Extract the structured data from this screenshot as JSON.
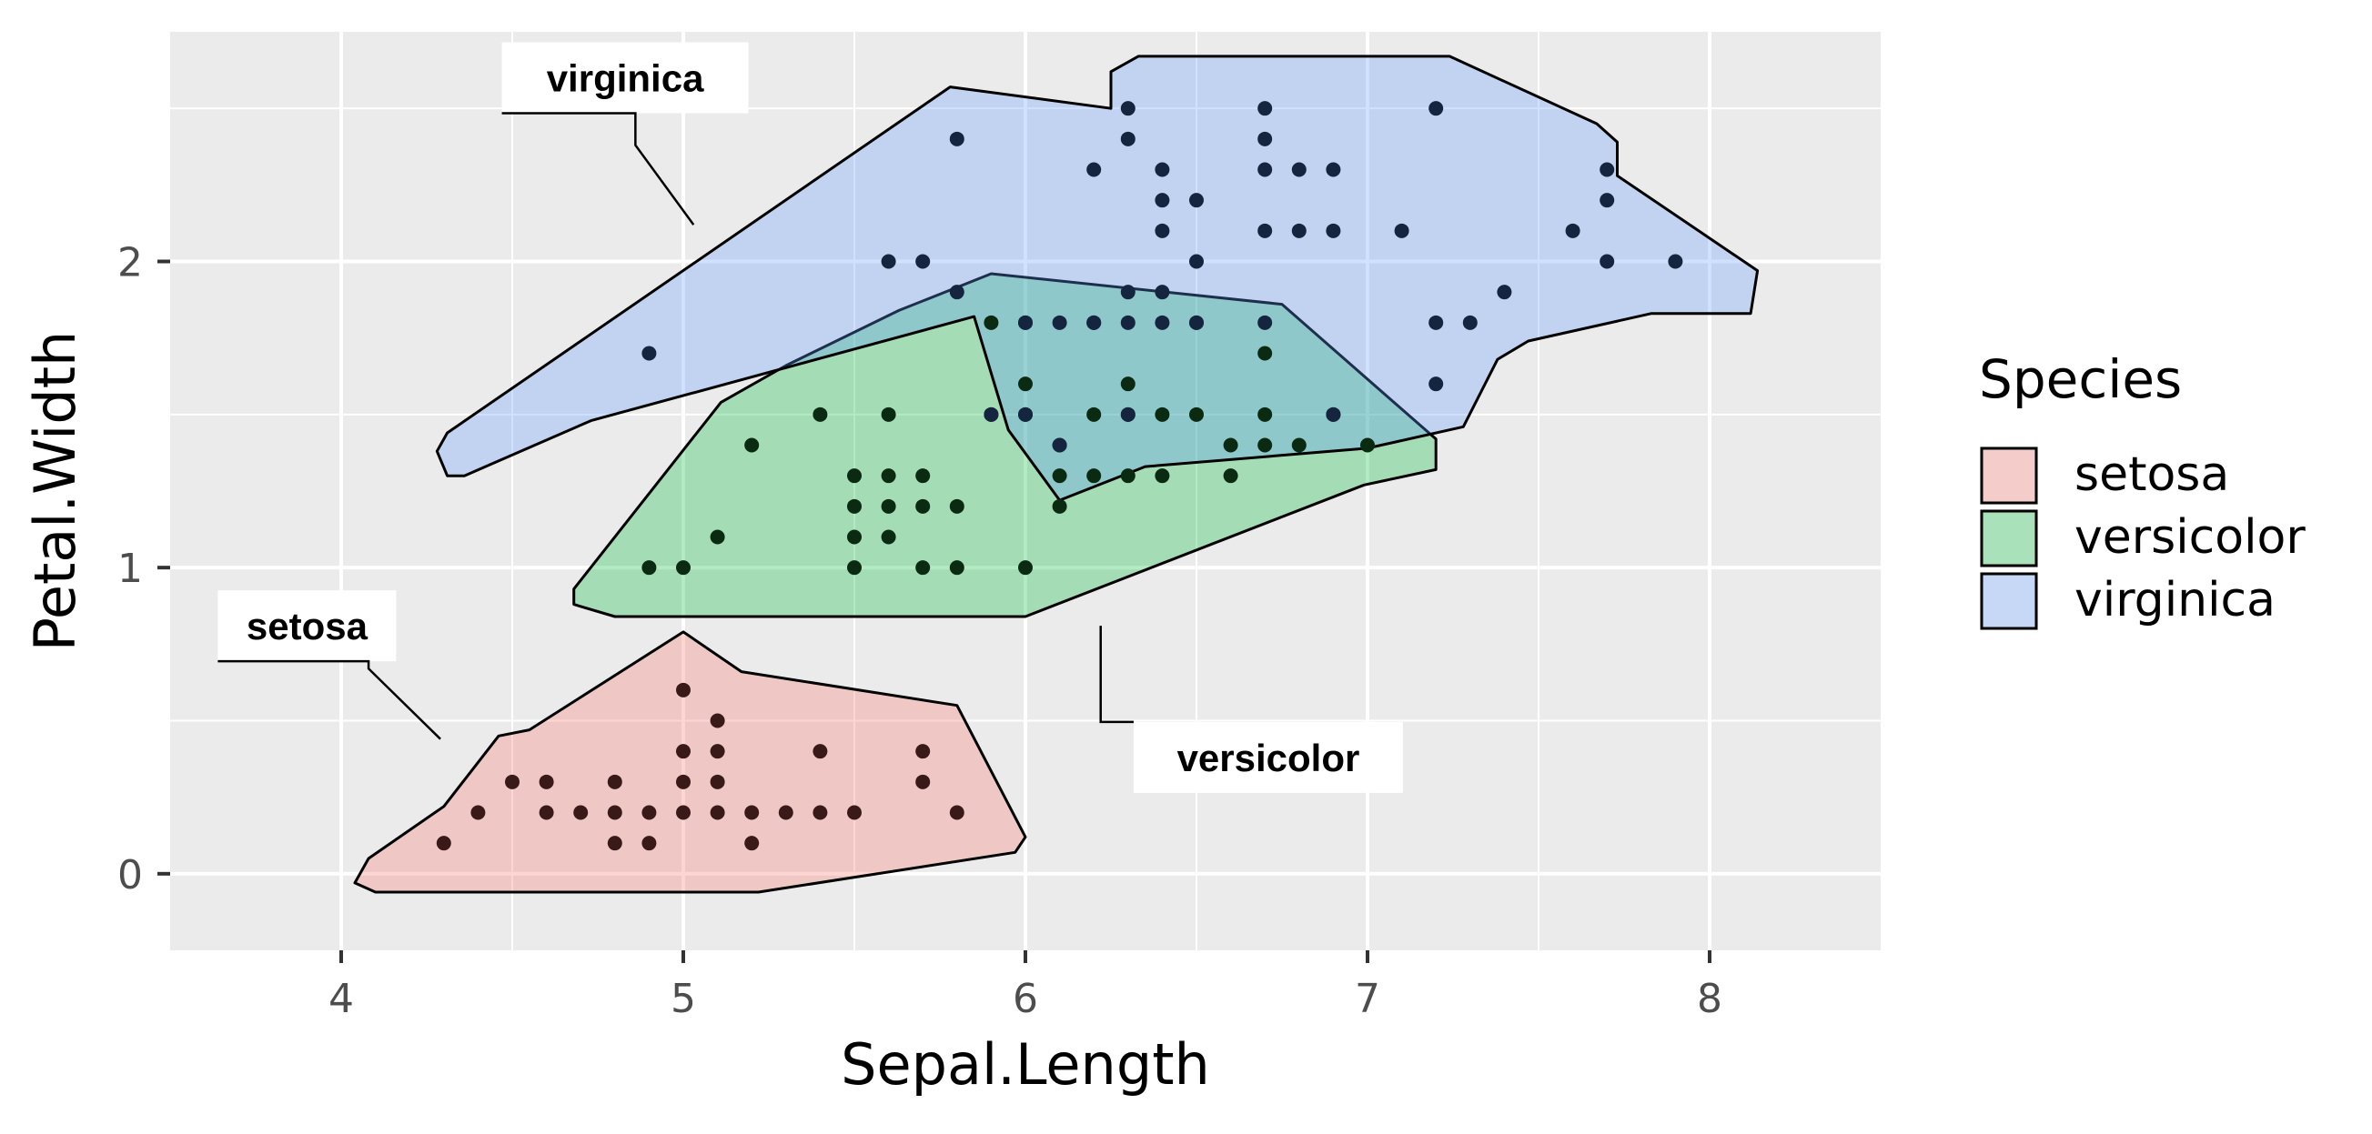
{
  "chart_data": {
    "type": "scatter",
    "xlabel": "Sepal.Length",
    "ylabel": "Petal.Width",
    "xlim": [
      3.5,
      8.5
    ],
    "ylim": [
      -0.25,
      2.75
    ],
    "x_ticks": [
      "4",
      "5",
      "6",
      "7",
      "8"
    ],
    "y_ticks": [
      "0",
      "1",
      "2"
    ],
    "grid": true,
    "legend": {
      "title": "Species",
      "position": "right",
      "entries": [
        "setosa",
        "versicolor",
        "virginica"
      ]
    },
    "series": [
      {
        "name": "setosa",
        "fill_color": "#F8766D",
        "point_color": "#3a1a18",
        "label": "setosa",
        "points": [
          [
            4.3,
            0.1
          ],
          [
            4.4,
            0.2
          ],
          [
            4.5,
            0.3
          ],
          [
            4.6,
            0.2
          ],
          [
            4.6,
            0.3
          ],
          [
            4.7,
            0.2
          ],
          [
            4.8,
            0.1
          ],
          [
            4.8,
            0.2
          ],
          [
            4.8,
            0.3
          ],
          [
            4.9,
            0.1
          ],
          [
            4.9,
            0.2
          ],
          [
            5.0,
            0.2
          ],
          [
            5.0,
            0.3
          ],
          [
            5.0,
            0.4
          ],
          [
            5.0,
            0.6
          ],
          [
            5.1,
            0.2
          ],
          [
            5.1,
            0.3
          ],
          [
            5.1,
            0.4
          ],
          [
            5.1,
            0.5
          ],
          [
            5.2,
            0.1
          ],
          [
            5.2,
            0.2
          ],
          [
            5.3,
            0.2
          ],
          [
            5.4,
            0.2
          ],
          [
            5.4,
            0.4
          ],
          [
            5.5,
            0.2
          ],
          [
            5.7,
            0.3
          ],
          [
            5.7,
            0.4
          ],
          [
            5.8,
            0.2
          ]
        ]
      },
      {
        "name": "versicolor",
        "fill_color": "#00BA38",
        "point_color": "#0b2a12",
        "label": "versicolor",
        "points": [
          [
            4.9,
            1.0
          ],
          [
            5.0,
            1.0
          ],
          [
            5.1,
            1.1
          ],
          [
            5.2,
            1.4
          ],
          [
            5.4,
            1.5
          ],
          [
            5.5,
            1.0
          ],
          [
            5.5,
            1.1
          ],
          [
            5.5,
            1.2
          ],
          [
            5.5,
            1.3
          ],
          [
            5.6,
            1.1
          ],
          [
            5.6,
            1.2
          ],
          [
            5.6,
            1.3
          ],
          [
            5.6,
            1.5
          ],
          [
            5.7,
            1.0
          ],
          [
            5.7,
            1.2
          ],
          [
            5.7,
            1.3
          ],
          [
            5.8,
            1.0
          ],
          [
            5.8,
            1.2
          ],
          [
            5.9,
            1.5
          ],
          [
            5.9,
            1.8
          ],
          [
            6.0,
            1.0
          ],
          [
            6.0,
            1.5
          ],
          [
            6.0,
            1.6
          ],
          [
            6.1,
            1.2
          ],
          [
            6.1,
            1.3
          ],
          [
            6.1,
            1.4
          ],
          [
            6.2,
            1.3
          ],
          [
            6.2,
            1.5
          ],
          [
            6.3,
            1.3
          ],
          [
            6.3,
            1.5
          ],
          [
            6.3,
            1.6
          ],
          [
            6.4,
            1.3
          ],
          [
            6.4,
            1.5
          ],
          [
            6.5,
            1.5
          ],
          [
            6.6,
            1.3
          ],
          [
            6.6,
            1.4
          ],
          [
            6.7,
            1.4
          ],
          [
            6.7,
            1.5
          ],
          [
            6.7,
            1.7
          ],
          [
            6.8,
            1.4
          ],
          [
            6.9,
            1.5
          ],
          [
            7.0,
            1.4
          ]
        ]
      },
      {
        "name": "virginica",
        "fill_color": "#619CFF",
        "point_color": "#15253f",
        "label": "virginica",
        "points": [
          [
            4.9,
            1.7
          ],
          [
            5.6,
            2.0
          ],
          [
            5.7,
            2.0
          ],
          [
            5.8,
            1.9
          ],
          [
            5.8,
            2.4
          ],
          [
            6.0,
            1.8
          ],
          [
            6.1,
            1.8
          ],
          [
            6.2,
            1.8
          ],
          [
            6.2,
            2.3
          ],
          [
            6.3,
            1.8
          ],
          [
            6.3,
            1.9
          ],
          [
            6.3,
            2.4
          ],
          [
            6.3,
            2.5
          ],
          [
            6.4,
            1.8
          ],
          [
            6.4,
            1.9
          ],
          [
            6.4,
            2.1
          ],
          [
            6.4,
            2.2
          ],
          [
            6.4,
            2.3
          ],
          [
            6.5,
            1.8
          ],
          [
            6.5,
            2.0
          ],
          [
            6.5,
            2.2
          ],
          [
            6.7,
            1.8
          ],
          [
            6.7,
            2.1
          ],
          [
            6.7,
            2.3
          ],
          [
            6.7,
            2.4
          ],
          [
            6.7,
            2.5
          ],
          [
            6.8,
            2.1
          ],
          [
            6.8,
            2.3
          ],
          [
            6.9,
            2.1
          ],
          [
            6.9,
            2.3
          ],
          [
            7.1,
            2.1
          ],
          [
            7.2,
            1.6
          ],
          [
            7.2,
            1.8
          ],
          [
            7.2,
            2.5
          ],
          [
            7.3,
            1.8
          ],
          [
            7.4,
            1.9
          ],
          [
            7.6,
            2.1
          ],
          [
            7.7,
            2.0
          ],
          [
            7.7,
            2.2
          ],
          [
            7.7,
            2.3
          ],
          [
            7.9,
            2.0
          ],
          [
            5.9,
            1.5
          ],
          [
            6.0,
            1.5
          ],
          [
            6.1,
            1.4
          ],
          [
            6.3,
            1.5
          ],
          [
            6.9,
            1.5
          ],
          [
            6.2,
            1.8
          ],
          [
            6.5,
            1.8
          ],
          [
            6.0,
            1.8
          ]
        ]
      }
    ],
    "hulls": [
      {
        "name": "setosa",
        "points": [
          [
            4.08,
            0.05
          ],
          [
            4.3,
            0.22
          ],
          [
            4.46,
            0.45
          ],
          [
            4.55,
            0.47
          ],
          [
            5.0,
            0.79
          ],
          [
            5.17,
            0.66
          ],
          [
            5.8,
            0.55
          ],
          [
            6.0,
            0.12
          ],
          [
            5.97,
            0.07
          ],
          [
            5.22,
            -0.06
          ],
          [
            4.1,
            -0.06
          ],
          [
            4.04,
            -0.03
          ]
        ]
      },
      {
        "name": "versicolor",
        "points": [
          [
            4.68,
            0.93
          ],
          [
            5.11,
            1.54
          ],
          [
            5.3,
            1.66
          ],
          [
            5.63,
            1.84
          ],
          [
            5.9,
            1.96
          ],
          [
            6.75,
            1.86
          ],
          [
            7.2,
            1.42
          ],
          [
            7.2,
            1.32
          ],
          [
            6.99,
            1.27
          ],
          [
            6.0,
            0.84
          ],
          [
            4.8,
            0.84
          ],
          [
            4.68,
            0.88
          ]
        ]
      },
      {
        "name": "virginica",
        "points": [
          [
            4.28,
            1.38
          ],
          [
            4.31,
            1.44
          ],
          [
            5.78,
            2.57
          ],
          [
            6.25,
            2.5
          ],
          [
            6.25,
            2.62
          ],
          [
            6.33,
            2.67
          ],
          [
            7.24,
            2.67
          ],
          [
            7.67,
            2.45
          ],
          [
            7.73,
            2.39
          ],
          [
            7.73,
            2.28
          ],
          [
            8.14,
            1.97
          ],
          [
            8.12,
            1.83
          ],
          [
            7.83,
            1.83
          ],
          [
            7.47,
            1.74
          ],
          [
            7.38,
            1.68
          ],
          [
            7.28,
            1.46
          ],
          [
            7.0,
            1.39
          ],
          [
            6.35,
            1.33
          ],
          [
            6.1,
            1.22
          ],
          [
            5.95,
            1.45
          ],
          [
            5.85,
            1.82
          ],
          [
            4.73,
            1.48
          ],
          [
            4.36,
            1.3
          ],
          [
            4.31,
            1.3
          ]
        ]
      }
    ],
    "annotations": [
      {
        "text": "virginica",
        "box_center": [
          4.83,
          2.6
        ],
        "elbow": [
          4.86,
          2.38
        ],
        "target": [
          5.03,
          2.12
        ]
      },
      {
        "text": "setosa",
        "box_center": [
          3.9,
          0.81
        ],
        "elbow": [
          4.08,
          0.67
        ],
        "target": [
          4.29,
          0.44
        ]
      },
      {
        "text": "versicolor",
        "box_center": [
          6.71,
          0.38
        ],
        "elbow": [
          6.22,
          0.51
        ],
        "target": [
          6.22,
          0.81
        ]
      }
    ]
  }
}
